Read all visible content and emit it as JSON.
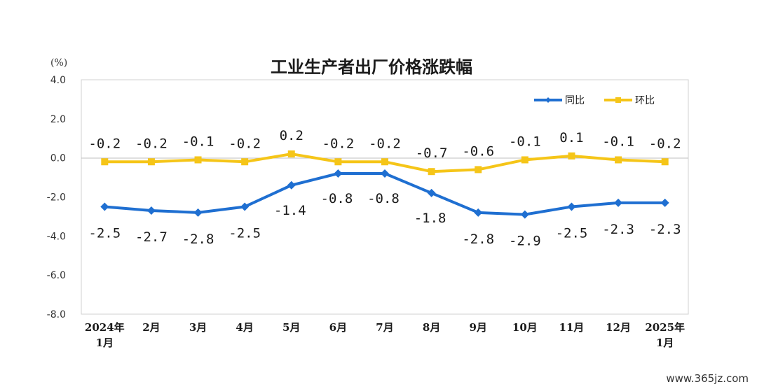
{
  "chart_data": {
    "type": "line",
    "title": "工业生产者出厂价格涨跌幅",
    "unit_label": "(%)",
    "categories": [
      [
        "2024年",
        "1月"
      ],
      [
        "2月"
      ],
      [
        "3月"
      ],
      [
        "4月"
      ],
      [
        "5月"
      ],
      [
        "6月"
      ],
      [
        "7月"
      ],
      [
        "8月"
      ],
      [
        "9月"
      ],
      [
        "10月"
      ],
      [
        "11月"
      ],
      [
        "12月"
      ],
      [
        "2025年",
        "1月"
      ]
    ],
    "ylim": [
      -8.0,
      4.0
    ],
    "yticks": [
      "4.0",
      "2.0",
      "0.0",
      "-2.0",
      "-4.0",
      "-6.0",
      "-8.0"
    ],
    "grid": false,
    "legend_position": "top-right",
    "series": [
      {
        "name": "同比",
        "color": "#1f6fd1",
        "marker": "diamond",
        "values": [
          -2.5,
          -2.7,
          -2.8,
          -2.5,
          -1.4,
          -0.8,
          -0.8,
          -1.8,
          -2.8,
          -2.9,
          -2.5,
          -2.3,
          -2.3
        ],
        "labels": [
          "-2.5",
          "-2.7",
          "-2.8",
          "-2.5",
          "-1.4",
          "-0.8",
          "-0.8",
          "-1.8",
          "-2.8",
          "-2.9",
          "-2.5",
          "-2.3",
          "-2.3"
        ]
      },
      {
        "name": "环比",
        "color": "#f5c518",
        "marker": "square",
        "values": [
          -0.2,
          -0.2,
          -0.1,
          -0.2,
          0.2,
          -0.2,
          -0.2,
          -0.7,
          -0.6,
          -0.1,
          0.1,
          -0.1,
          -0.2
        ],
        "labels": [
          "-0.2",
          "-0.2",
          "-0.1",
          "-0.2",
          "0.2",
          "-0.2",
          "-0.2",
          "-0.7",
          "-0.6",
          "-0.1",
          "0.1",
          "-0.1",
          "-0.2"
        ]
      }
    ]
  },
  "watermark": "www.365jz.com"
}
